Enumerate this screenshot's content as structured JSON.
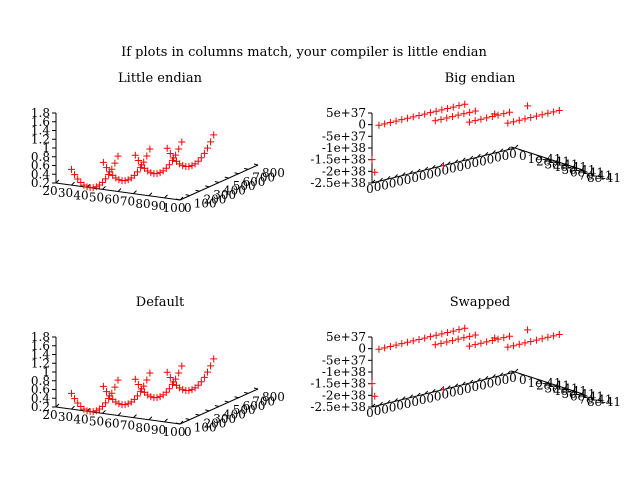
{
  "page": {
    "title": "If plots in columns match, your compiler is little endian",
    "colors": {
      "background": "#ffffff",
      "axes": "#000000",
      "points": "#ff0000"
    }
  },
  "chart_data": [
    {
      "type": "scatter",
      "title": "Little endian",
      "projection": "3d",
      "grid": false,
      "legend": "none",
      "marker": "plus",
      "xlim": [
        20,
        100
      ],
      "ylim": [
        0,
        800
      ],
      "zlim": [
        0.2,
        1.8
      ],
      "x_ticks": [
        "20",
        "30",
        "40",
        "50",
        "60",
        "70",
        "80",
        "90",
        "100"
      ],
      "y_ticks": [
        "0",
        "100",
        "200",
        "300",
        "400",
        "500",
        "600",
        "700",
        "800"
      ],
      "z_ticks": [
        "0.2",
        "0.4",
        "0.6",
        "0.8",
        "1",
        "1.2",
        "1.4",
        "1.6",
        "1.8"
      ],
      "series": [
        {
          "x": [
            30,
            32,
            34,
            36,
            38,
            40,
            42,
            44,
            46,
            48,
            50,
            52,
            54,
            56,
            58,
            60
          ],
          "y": [
            0,
            0,
            0,
            0,
            0,
            0,
            0,
            0,
            0,
            0,
            0,
            0,
            0,
            0,
            0,
            0
          ],
          "z": [
            0.56,
            0.45,
            0.36,
            0.29,
            0.24,
            0.21,
            0.2,
            0.21,
            0.24,
            0.29,
            0.36,
            0.45,
            0.56,
            0.69,
            0.84,
            1.01
          ]
        },
        {
          "x": [
            38,
            40,
            42,
            44,
            46,
            48,
            50,
            52,
            54,
            56,
            58,
            60,
            62,
            64,
            66,
            68
          ],
          "y": [
            200,
            200,
            200,
            200,
            200,
            200,
            200,
            200,
            200,
            200,
            200,
            200,
            200,
            200,
            200,
            200
          ],
          "z": [
            0.56,
            0.45,
            0.36,
            0.29,
            0.24,
            0.21,
            0.2,
            0.21,
            0.24,
            0.29,
            0.36,
            0.45,
            0.56,
            0.69,
            0.84,
            1.01
          ]
        },
        {
          "x": [
            46,
            48,
            50,
            52,
            54,
            56,
            58,
            60,
            62,
            64,
            66,
            68,
            70,
            72,
            74,
            76
          ],
          "y": [
            400,
            400,
            400,
            400,
            400,
            400,
            400,
            400,
            400,
            400,
            400,
            400,
            400,
            400,
            400,
            400
          ],
          "z": [
            0.56,
            0.45,
            0.36,
            0.29,
            0.24,
            0.21,
            0.2,
            0.21,
            0.24,
            0.29,
            0.36,
            0.45,
            0.56,
            0.69,
            0.84,
            1.01
          ]
        },
        {
          "x": [
            54,
            56,
            58,
            60,
            62,
            64,
            66,
            68,
            70,
            72,
            74,
            76,
            78,
            80,
            82,
            84
          ],
          "y": [
            600,
            600,
            600,
            600,
            600,
            600,
            600,
            600,
            600,
            600,
            600,
            600,
            600,
            600,
            600,
            600
          ],
          "z": [
            0.56,
            0.45,
            0.36,
            0.29,
            0.24,
            0.21,
            0.2,
            0.21,
            0.24,
            0.29,
            0.36,
            0.45,
            0.56,
            0.69,
            0.84,
            1.01
          ]
        }
      ]
    },
    {
      "type": "scatter",
      "title": "Big endian",
      "projection": "3d",
      "grid": false,
      "legend": "none",
      "marker": "plus",
      "xlim": [
        0,
        1
      ],
      "ylim": [
        0,
        1
      ],
      "zlim": [
        -2.5e+38,
        5e+37
      ],
      "x_ticks": [
        "0",
        "0",
        "0",
        "0",
        "0",
        "0",
        "0",
        "0",
        "0",
        "0",
        "0",
        "0",
        "0",
        "0",
        "0",
        "0",
        "0",
        "0",
        "0",
        "0"
      ],
      "y_ticks": [
        "0",
        "1e-41",
        "2e-41",
        "3e-41",
        "4e-41",
        "5e-41",
        "6e-41",
        "7e-41",
        "8e-41"
      ],
      "z_ticks": [
        "5e+37",
        "0",
        "-5e+37",
        "-1e+38",
        "-1.5e+38",
        "-2e+38",
        "-2.5e+38"
      ],
      "series": [
        {
          "x": [
            0.02,
            0.06,
            0.1,
            0.14,
            0.18,
            0.22,
            0.26,
            0.3,
            0.34,
            0.38,
            0.42,
            0.46,
            0.5,
            0.54,
            0.58,
            0.62
          ],
          "y": [
            0.06,
            0.06,
            0.06,
            0.06,
            0.06,
            0.06,
            0.06,
            0.06,
            0.06,
            0.06,
            0.06,
            0.06,
            0.06,
            0.06,
            0.06,
            0.06
          ],
          "z": [
            0,
            0,
            0,
            0,
            0,
            0,
            0,
            0,
            0,
            0,
            0,
            0,
            0,
            0,
            0,
            0
          ]
        },
        {
          "x": [
            0.3,
            0.34,
            0.38,
            0.42,
            0.46,
            0.5,
            0.54,
            0.58
          ],
          "y": [
            0.3,
            0.3,
            0.3,
            0.3,
            0.3,
            0.3,
            0.3,
            0.3
          ],
          "z": [
            0,
            0,
            0,
            0,
            0,
            0,
            0,
            0
          ]
        },
        {
          "x": [
            0.42,
            0.46,
            0.5,
            0.54,
            0.58,
            0.62,
            0.66,
            0.7
          ],
          "y": [
            0.55,
            0.55,
            0.55,
            0.55,
            0.55,
            0.55,
            0.55,
            0.55
          ],
          "z": [
            0,
            0,
            0,
            0,
            0,
            0,
            0,
            0
          ]
        },
        {
          "x": [
            0.56,
            0.6,
            0.64,
            0.68,
            0.72,
            0.76,
            0.8,
            0.84,
            0.88,
            0.92
          ],
          "y": [
            0.82,
            0.82,
            0.82,
            0.82,
            0.82,
            0.82,
            0.82,
            0.82,
            0.82,
            0.82
          ],
          "z": [
            0,
            0,
            0,
            0,
            0,
            0,
            0,
            0,
            0,
            0
          ]
        },
        {
          "x": [
            0.0,
            0.0,
            0.5,
            0.62,
            0.85
          ],
          "y": [
            0.0,
            0.04,
            0.0,
            0.5,
            0.5
          ],
          "z": [
            -1.5e+38,
            -2e+38,
            -2.5e+38,
            0,
            0
          ]
        }
      ]
    },
    {
      "type": "scatter",
      "title": "Default",
      "projection": "3d",
      "grid": false,
      "legend": "none",
      "marker": "plus",
      "xlim": [
        20,
        100
      ],
      "ylim": [
        0,
        800
      ],
      "zlim": [
        0.2,
        1.8
      ],
      "x_ticks": [
        "20",
        "30",
        "40",
        "50",
        "60",
        "70",
        "80",
        "90",
        "100"
      ],
      "y_ticks": [
        "0",
        "100",
        "200",
        "300",
        "400",
        "500",
        "600",
        "700",
        "800"
      ],
      "z_ticks": [
        "0.2",
        "0.4",
        "0.6",
        "0.8",
        "1",
        "1.2",
        "1.4",
        "1.6",
        "1.8"
      ],
      "series": [
        {
          "x": [
            30,
            32,
            34,
            36,
            38,
            40,
            42,
            44,
            46,
            48,
            50,
            52,
            54,
            56,
            58,
            60
          ],
          "y": [
            0,
            0,
            0,
            0,
            0,
            0,
            0,
            0,
            0,
            0,
            0,
            0,
            0,
            0,
            0,
            0
          ],
          "z": [
            0.56,
            0.45,
            0.36,
            0.29,
            0.24,
            0.21,
            0.2,
            0.21,
            0.24,
            0.29,
            0.36,
            0.45,
            0.56,
            0.69,
            0.84,
            1.01
          ]
        },
        {
          "x": [
            38,
            40,
            42,
            44,
            46,
            48,
            50,
            52,
            54,
            56,
            58,
            60,
            62,
            64,
            66,
            68
          ],
          "y": [
            200,
            200,
            200,
            200,
            200,
            200,
            200,
            200,
            200,
            200,
            200,
            200,
            200,
            200,
            200,
            200
          ],
          "z": [
            0.56,
            0.45,
            0.36,
            0.29,
            0.24,
            0.21,
            0.2,
            0.21,
            0.24,
            0.29,
            0.36,
            0.45,
            0.56,
            0.69,
            0.84,
            1.01
          ]
        },
        {
          "x": [
            46,
            48,
            50,
            52,
            54,
            56,
            58,
            60,
            62,
            64,
            66,
            68,
            70,
            72,
            74,
            76
          ],
          "y": [
            400,
            400,
            400,
            400,
            400,
            400,
            400,
            400,
            400,
            400,
            400,
            400,
            400,
            400,
            400,
            400
          ],
          "z": [
            0.56,
            0.45,
            0.36,
            0.29,
            0.24,
            0.21,
            0.2,
            0.21,
            0.24,
            0.29,
            0.36,
            0.45,
            0.56,
            0.69,
            0.84,
            1.01
          ]
        },
        {
          "x": [
            54,
            56,
            58,
            60,
            62,
            64,
            66,
            68,
            70,
            72,
            74,
            76,
            78,
            80,
            82,
            84
          ],
          "y": [
            600,
            600,
            600,
            600,
            600,
            600,
            600,
            600,
            600,
            600,
            600,
            600,
            600,
            600,
            600,
            600
          ],
          "z": [
            0.56,
            0.45,
            0.36,
            0.29,
            0.24,
            0.21,
            0.2,
            0.21,
            0.24,
            0.29,
            0.36,
            0.45,
            0.56,
            0.69,
            0.84,
            1.01
          ]
        }
      ]
    },
    {
      "type": "scatter",
      "title": "Swapped",
      "projection": "3d",
      "grid": false,
      "legend": "none",
      "marker": "plus",
      "xlim": [
        0,
        1
      ],
      "ylim": [
        0,
        1
      ],
      "zlim": [
        -2.5e+38,
        5e+37
      ],
      "x_ticks": [
        "0",
        "0",
        "0",
        "0",
        "0",
        "0",
        "0",
        "0",
        "0",
        "0",
        "0",
        "0",
        "0",
        "0",
        "0",
        "0",
        "0",
        "0",
        "0",
        "0"
      ],
      "y_ticks": [
        "0",
        "1e-41",
        "2e-41",
        "3e-41",
        "4e-41",
        "5e-41",
        "6e-41",
        "7e-41",
        "8e-41"
      ],
      "z_ticks": [
        "5e+37",
        "0",
        "-5e+37",
        "-1e+38",
        "-1.5e+38",
        "-2e+38",
        "-2.5e+38"
      ],
      "series": [
        {
          "x": [
            0.02,
            0.06,
            0.1,
            0.14,
            0.18,
            0.22,
            0.26,
            0.3,
            0.34,
            0.38,
            0.42,
            0.46,
            0.5,
            0.54,
            0.58,
            0.62
          ],
          "y": [
            0.06,
            0.06,
            0.06,
            0.06,
            0.06,
            0.06,
            0.06,
            0.06,
            0.06,
            0.06,
            0.06,
            0.06,
            0.06,
            0.06,
            0.06,
            0.06
          ],
          "z": [
            0,
            0,
            0,
            0,
            0,
            0,
            0,
            0,
            0,
            0,
            0,
            0,
            0,
            0,
            0,
            0
          ]
        },
        {
          "x": [
            0.3,
            0.34,
            0.38,
            0.42,
            0.46,
            0.5,
            0.54,
            0.58
          ],
          "y": [
            0.3,
            0.3,
            0.3,
            0.3,
            0.3,
            0.3,
            0.3,
            0.3
          ],
          "z": [
            0,
            0,
            0,
            0,
            0,
            0,
            0,
            0
          ]
        },
        {
          "x": [
            0.42,
            0.46,
            0.5,
            0.54,
            0.58,
            0.62,
            0.66,
            0.7
          ],
          "y": [
            0.55,
            0.55,
            0.55,
            0.55,
            0.55,
            0.55,
            0.55,
            0.55
          ],
          "z": [
            0,
            0,
            0,
            0,
            0,
            0,
            0,
            0
          ]
        },
        {
          "x": [
            0.56,
            0.6,
            0.64,
            0.68,
            0.72,
            0.76,
            0.8,
            0.84,
            0.88,
            0.92
          ],
          "y": [
            0.82,
            0.82,
            0.82,
            0.82,
            0.82,
            0.82,
            0.82,
            0.82,
            0.82,
            0.82
          ],
          "z": [
            0,
            0,
            0,
            0,
            0,
            0,
            0,
            0,
            0,
            0
          ]
        },
        {
          "x": [
            0.0,
            0.0,
            0.5,
            0.62,
            0.85
          ],
          "y": [
            0.0,
            0.04,
            0.0,
            0.5,
            0.5
          ],
          "z": [
            -1.5e+38,
            -2e+38,
            -2.5e+38,
            0,
            0
          ]
        }
      ]
    }
  ]
}
